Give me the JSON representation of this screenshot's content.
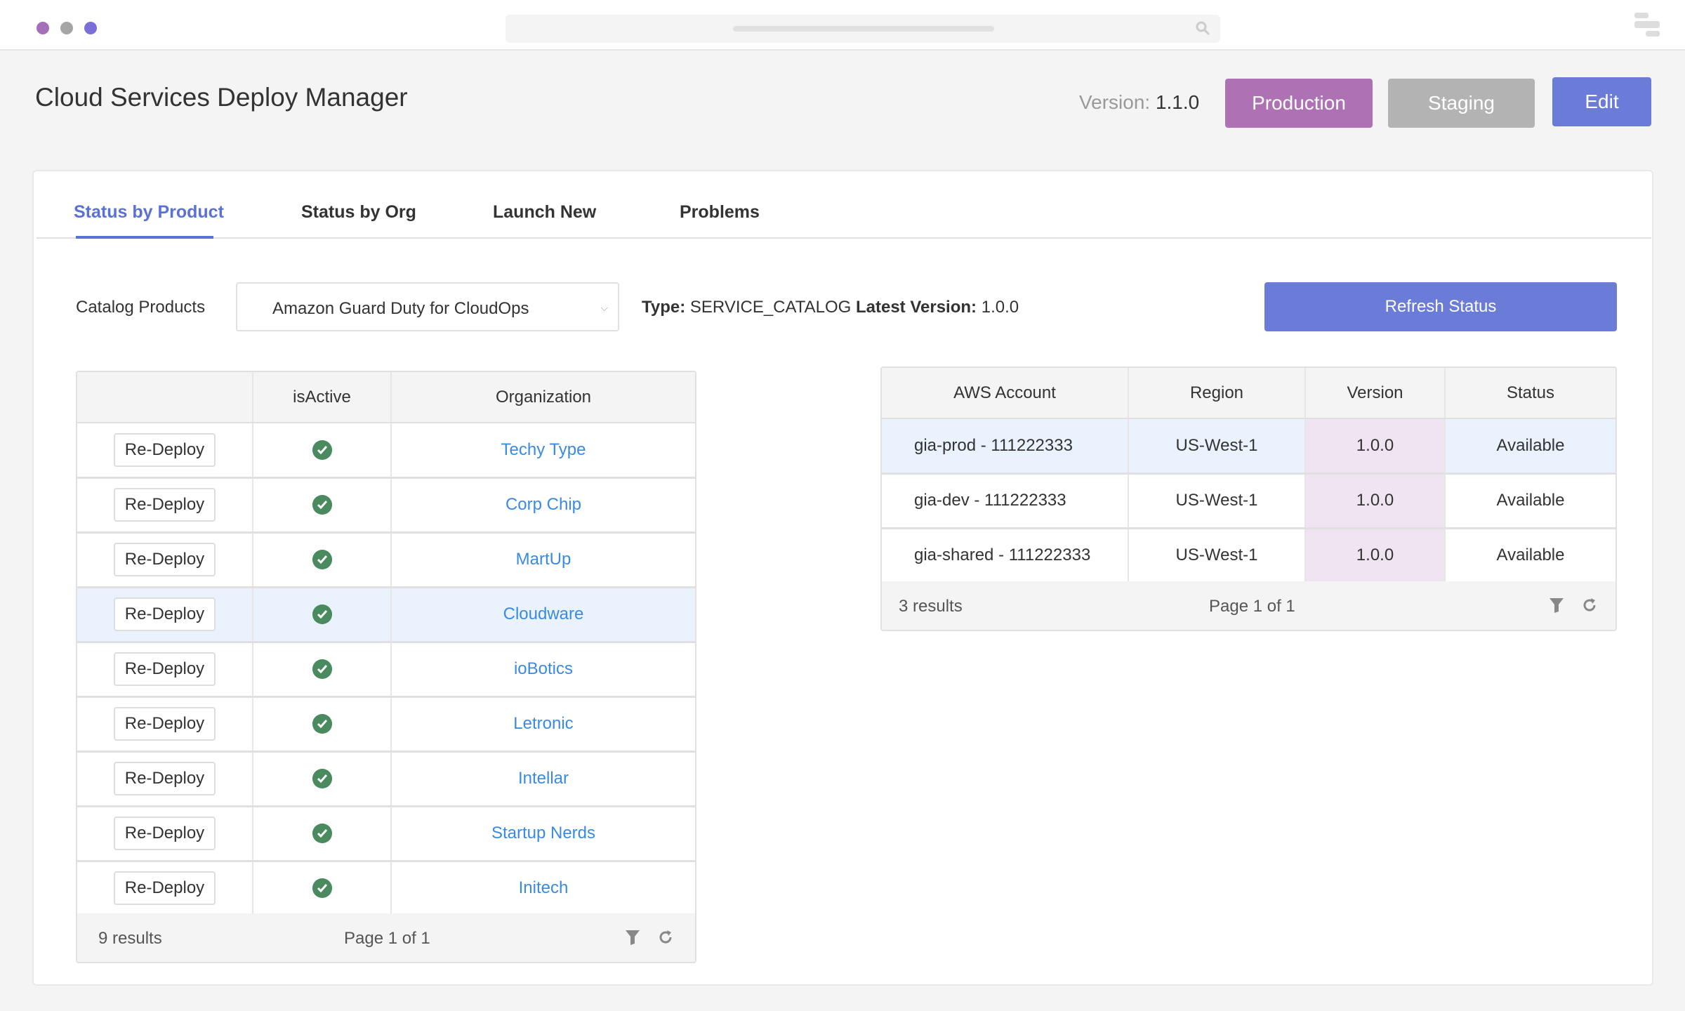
{
  "window": {
    "dots": [
      "#a46fb8",
      "#a5a5a5",
      "#7c6fd8"
    ]
  },
  "header": {
    "title": "Cloud Services Deploy Manager",
    "version_label": "Version:",
    "version_value": "1.1.0",
    "production": "Production",
    "staging": "Staging",
    "edit": "Edit"
  },
  "colors": {
    "production": "#ae72b4",
    "staging": "#b3b3b3",
    "edit": "#6b7bd8",
    "link": "#3a8be0",
    "active": "#4a8a5f"
  },
  "tabs": [
    {
      "label": "Status by Product",
      "active": true
    },
    {
      "label": "Status by Org"
    },
    {
      "label": "Launch New"
    },
    {
      "label": "Problems"
    }
  ],
  "catalog": {
    "label": "Catalog Products",
    "selected": "Amazon Guard Duty for CloudOps",
    "type_label": "Type:",
    "type_value": "SERVICE_CATALOG",
    "latest_label": "Latest Version:",
    "latest_value": "1.0.0",
    "refresh": "Refresh Status"
  },
  "org_table": {
    "columns": [
      "",
      "isActive",
      "Organization"
    ],
    "button_label": "Re-Deploy",
    "rows": [
      {
        "org": "Techy Type",
        "active": true
      },
      {
        "org": "Corp Chip",
        "active": true
      },
      {
        "org": "MartUp",
        "active": true
      },
      {
        "org": "Cloudware",
        "active": true,
        "selected": true
      },
      {
        "org": "ioBotics",
        "active": true
      },
      {
        "org": "Letronic",
        "active": true
      },
      {
        "org": "Intellar",
        "active": true
      },
      {
        "org": "Startup Nerds",
        "active": true
      },
      {
        "org": "Initech",
        "active": true
      }
    ],
    "results": "9 results",
    "page": "Page 1 of 1"
  },
  "account_table": {
    "columns": [
      "AWS Account",
      "Region",
      "Version",
      "Status"
    ],
    "rows": [
      {
        "account": "gia-prod - 111222333",
        "region": "US-West-1",
        "version": "1.0.0",
        "status": "Available",
        "selected": true
      },
      {
        "account": "gia-dev - 111222333",
        "region": "US-West-1",
        "version": "1.0.0",
        "status": "Available"
      },
      {
        "account": "gia-shared - 111222333",
        "region": "US-West-1",
        "version": "1.0.0",
        "status": "Available"
      }
    ],
    "results": "3 results",
    "page": "Page 1 of 1"
  }
}
